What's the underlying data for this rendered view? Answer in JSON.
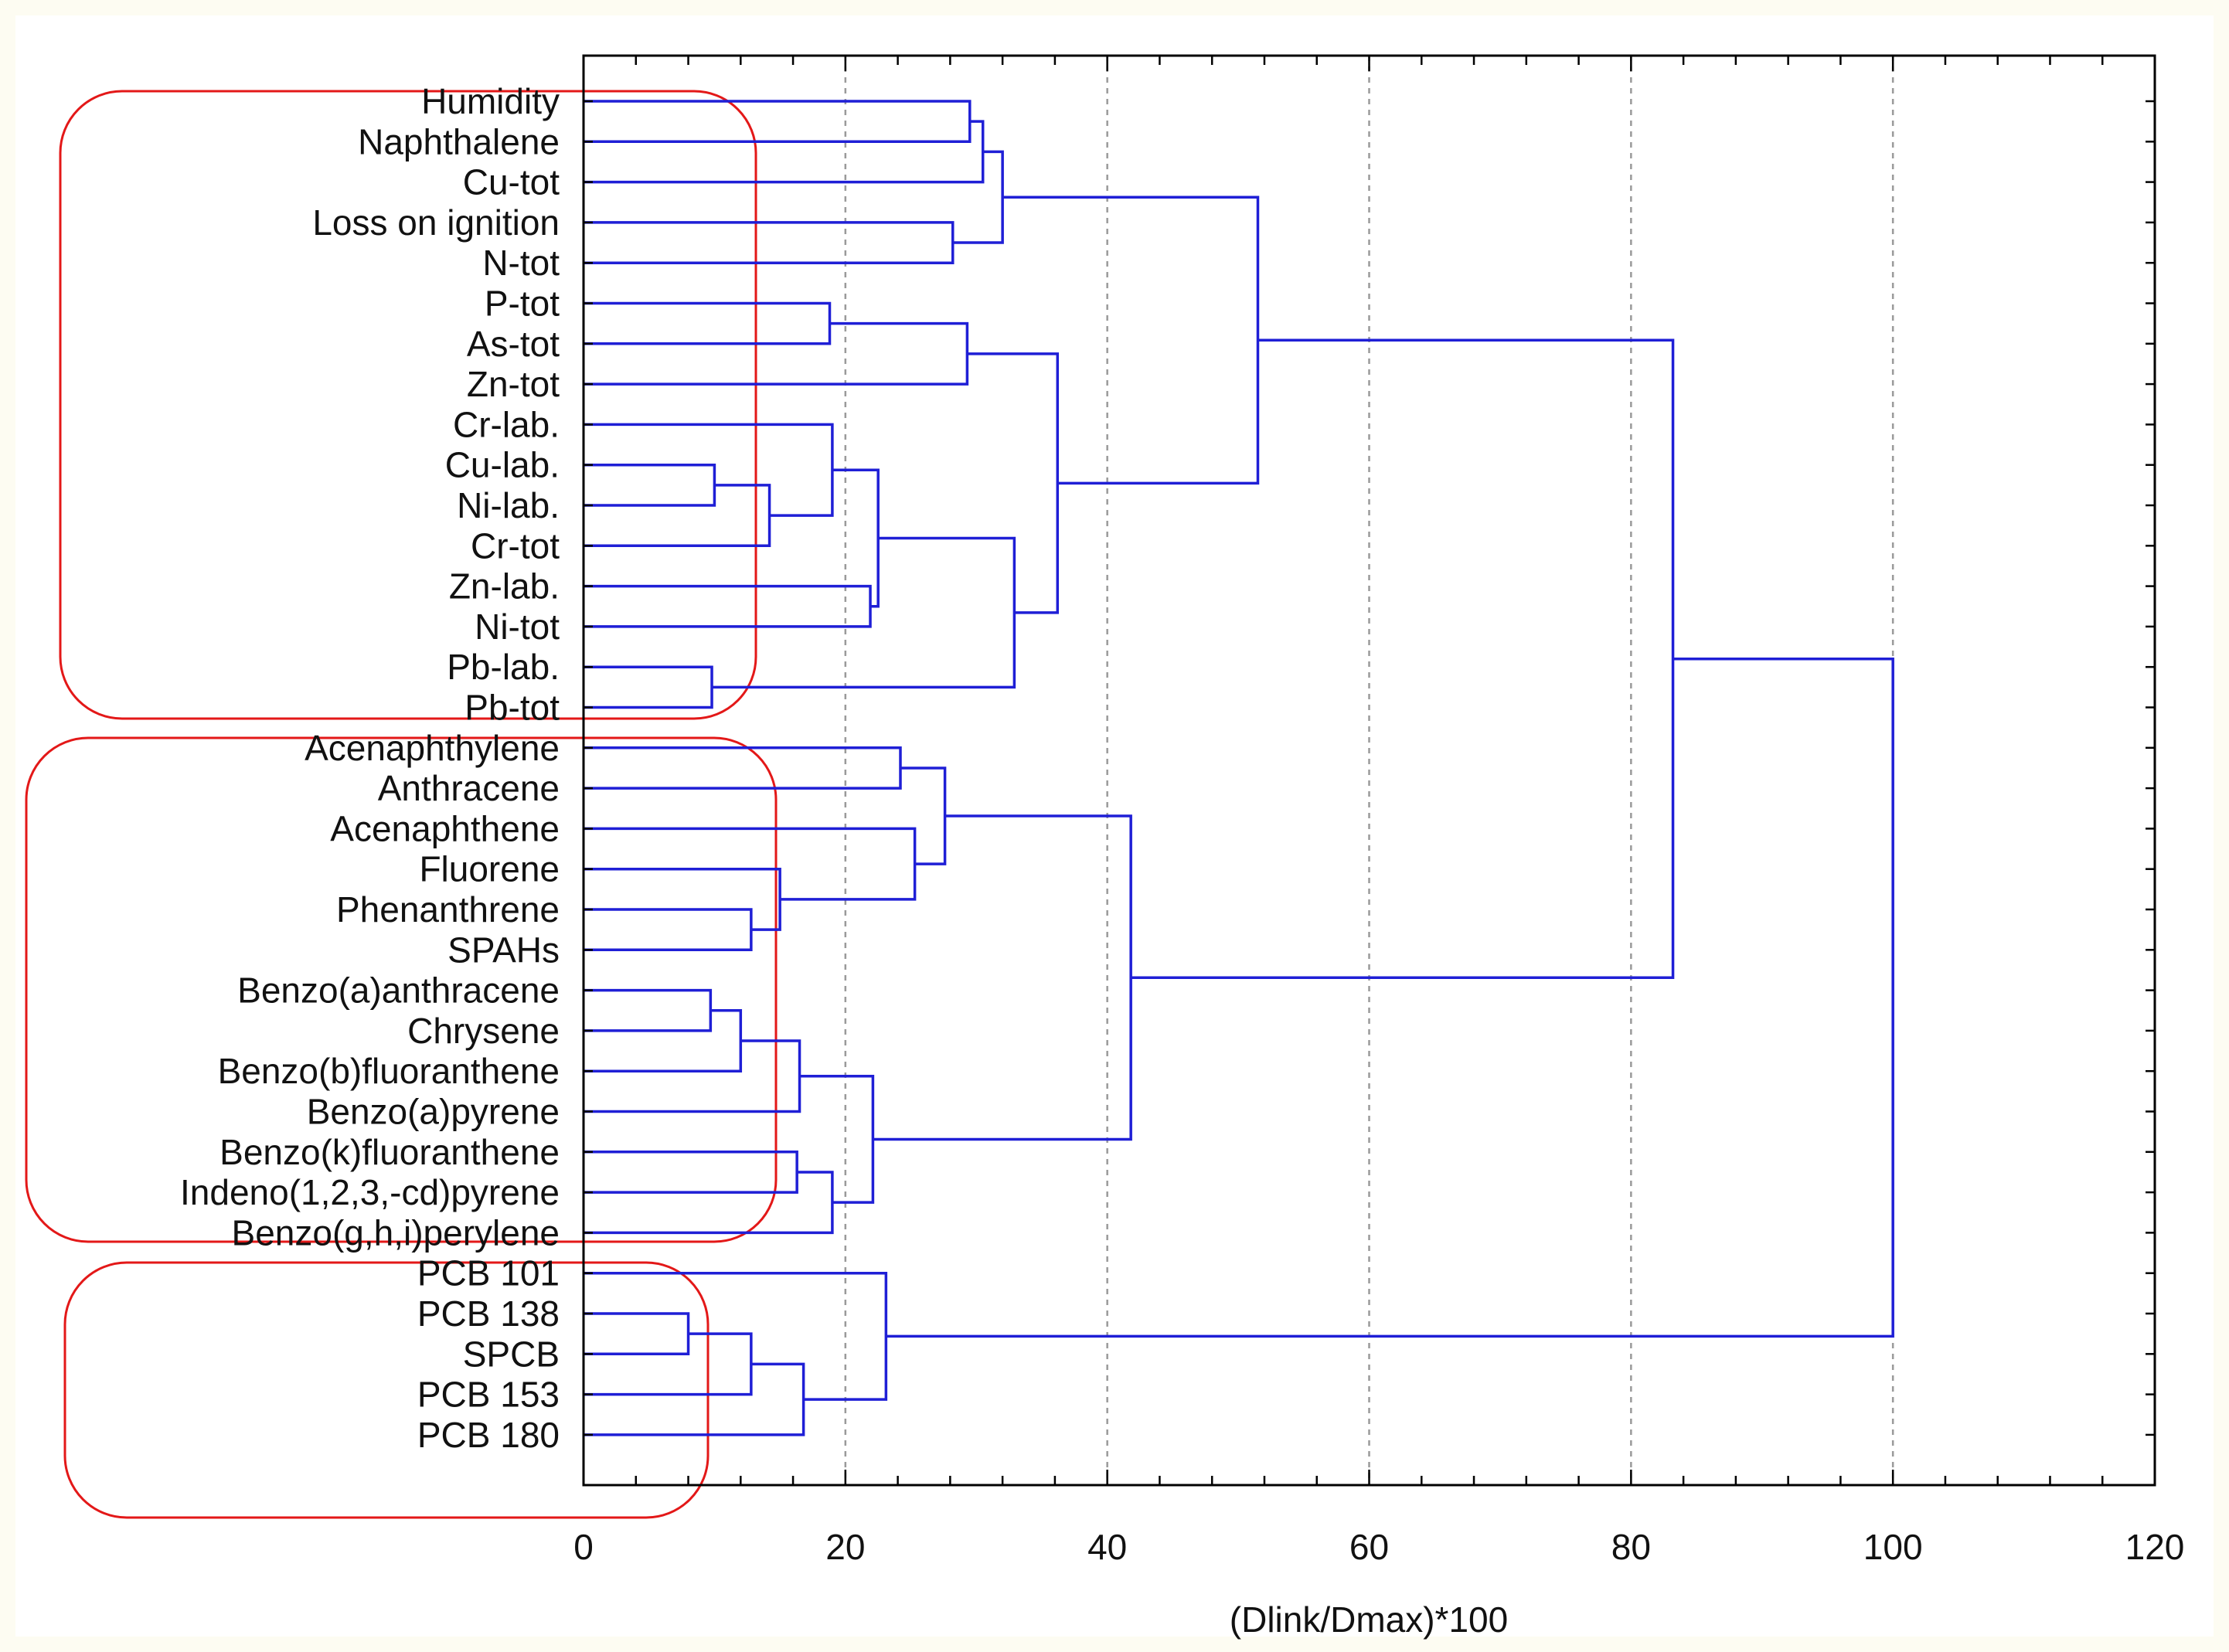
{
  "chart_data": {
    "type": "dendrogram",
    "orientation": "horizontal",
    "xlabel": "(Dlink/Dmax)*100",
    "xlim": [
      0,
      120
    ],
    "xticks": [
      0,
      20,
      40,
      60,
      80,
      100,
      120
    ],
    "grid_x": [
      20,
      40,
      60,
      80,
      100
    ],
    "leaves": [
      "Humidity",
      "Naphthalene",
      "Cu-tot",
      "Loss on ignition",
      "N-tot",
      "P-tot",
      "As-tot",
      "Zn-tot",
      "Cr-lab.",
      "Cu-lab.",
      "Ni-lab.",
      "Cr-tot",
      "Zn-lab.",
      "Ni-tot",
      "Pb-lab.",
      "Pb-tot",
      "Acenaphthylene",
      "Anthracene",
      "Acenaphthene",
      "Fluorene",
      "Phenanthrene",
      "SPAHs",
      "Benzo(a)anthracene",
      "Chrysene",
      "Benzo(b)fluoranthene",
      "Benzo(a)pyrene",
      "Benzo(k)fluoranthene",
      "Indeno(1,2,3,-cd)pyrene",
      "Benzo(g,h,i)perylene",
      "PCB 101",
      "PCB 138",
      "SPCB",
      "PCB 153",
      "PCB 180"
    ],
    "merges": [
      {
        "a": "L0",
        "b": "L1",
        "height": 29.5
      },
      {
        "a": "N0",
        "b": "L2",
        "height": 30.5
      },
      {
        "a": "L3",
        "b": "L4",
        "height": 28.2
      },
      {
        "a": "N1",
        "b": "N2",
        "height": 32.0
      },
      {
        "a": "L5",
        "b": "L6",
        "height": 18.8
      },
      {
        "a": "N4",
        "b": "L7",
        "height": 29.3
      },
      {
        "a": "L9",
        "b": "L10",
        "height": 10.0
      },
      {
        "a": "N6",
        "b": "L11",
        "height": 14.2
      },
      {
        "a": "L8",
        "b": "N7",
        "height": 19.0
      },
      {
        "a": "L12",
        "b": "L13",
        "height": 21.9
      },
      {
        "a": "N8",
        "b": "N9",
        "height": 22.5
      },
      {
        "a": "L14",
        "b": "L15",
        "height": 9.8
      },
      {
        "a": "N10",
        "b": "N11",
        "height": 32.9
      },
      {
        "a": "N5",
        "b": "N12",
        "height": 36.2
      },
      {
        "a": "N3",
        "b": "N13",
        "height": 51.5
      },
      {
        "a": "L16",
        "b": "L17",
        "height": 24.2
      },
      {
        "a": "L20",
        "b": "L21",
        "height": 12.8
      },
      {
        "a": "L19",
        "b": "N16",
        "height": 15.0
      },
      {
        "a": "L18",
        "b": "N17",
        "height": 25.3
      },
      {
        "a": "N15",
        "b": "N18",
        "height": 27.6
      },
      {
        "a": "L22",
        "b": "L23",
        "height": 9.7
      },
      {
        "a": "N20",
        "b": "L24",
        "height": 12.0
      },
      {
        "a": "N21",
        "b": "L25",
        "height": 16.5
      },
      {
        "a": "L26",
        "b": "L27",
        "height": 16.3
      },
      {
        "a": "N23",
        "b": "L28",
        "height": 19.0
      },
      {
        "a": "N22",
        "b": "N24",
        "height": 22.1
      },
      {
        "a": "N19",
        "b": "N25",
        "height": 41.8
      },
      {
        "a": "N14",
        "b": "N26",
        "height": 83.2
      },
      {
        "a": "L30",
        "b": "L31",
        "height": 8.0
      },
      {
        "a": "N28",
        "b": "L32",
        "height": 12.8
      },
      {
        "a": "N29",
        "b": "L33",
        "height": 16.8
      },
      {
        "a": "L29",
        "b": "N30",
        "height": 23.1
      },
      {
        "a": "N27",
        "b": "N31",
        "height": 100.0
      }
    ],
    "cluster_groups": [
      {
        "first_leaf": 0,
        "last_leaf": 15
      },
      {
        "first_leaf": 16,
        "last_leaf": 28
      },
      {
        "first_leaf": 29,
        "last_leaf": 33
      }
    ],
    "colors": {
      "dendrogram": "#1f1fd6",
      "group_box": "#e31818",
      "grid": "#9a9a9a",
      "axis": "#000000"
    }
  }
}
